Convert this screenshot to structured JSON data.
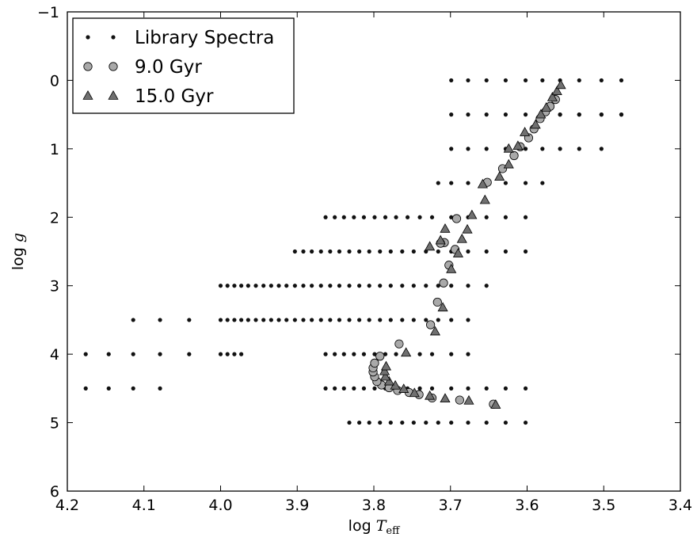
{
  "chart_data": {
    "type": "scatter",
    "xlabel": "log T_eff",
    "ylabel": "log g",
    "xlim": [
      4.2,
      3.4
    ],
    "ylim": [
      6,
      -1
    ],
    "x_ticks": [
      "4.2",
      "4.1",
      "4.0",
      "3.9",
      "3.8",
      "3.7",
      "3.6",
      "3.5",
      "3.4"
    ],
    "y_ticks": [
      "−1",
      "0",
      "1",
      "2",
      "3",
      "4",
      "5",
      "6"
    ],
    "grid": false,
    "legend": {
      "position": "top-left"
    },
    "series": [
      {
        "name": "Library Spectra",
        "marker": "dot",
        "color": "#111111",
        "rows": [
          {
            "y": 0.5,
            "x": [
              3.557,
              3.532,
              3.503,
              3.477
            ]
          },
          {
            "y": 0.0,
            "x": [
              3.699,
              3.677,
              3.653,
              3.628,
              3.602,
              3.58,
              3.557,
              3.532,
              3.503,
              3.477
            ]
          },
          {
            "y": 0.5,
            "x": [
              3.699,
              3.677,
              3.653,
              3.628,
              3.602,
              3.58,
              3.557,
              3.532,
              3.503,
              3.477
            ]
          },
          {
            "y": 1.0,
            "x": [
              3.699,
              3.677,
              3.653,
              3.628,
              3.602,
              3.58,
              3.557,
              3.532,
              3.503
            ]
          },
          {
            "y": 1.5,
            "x": [
              3.716,
              3.699,
              3.677,
              3.653,
              3.628,
              3.602,
              3.58
            ]
          },
          {
            "y": 2.0,
            "x": [
              3.863,
              3.851,
              3.839,
              3.826,
              3.813,
              3.799,
              3.785,
              3.771,
              3.756,
              3.74,
              3.724,
              3.699,
              3.677,
              3.653,
              3.628,
              3.602
            ]
          },
          {
            "y": 2.5,
            "x": [
              3.903,
              3.892,
              3.881,
              3.869,
              3.857,
              3.845,
              3.832,
              3.819,
              3.806,
              3.792,
              3.778,
              3.763,
              3.748,
              3.732,
              3.716,
              3.699,
              3.677,
              3.653,
              3.628,
              3.602
            ]
          },
          {
            "y": 3.0,
            "x": [
              4.0,
              3.991,
              3.982,
              3.973,
              3.964,
              3.954,
              3.944,
              3.934,
              3.924,
              3.914,
              3.903,
              3.892,
              3.881,
              3.869,
              3.857,
              3.845,
              3.832,
              3.819,
              3.806,
              3.792,
              3.778,
              3.763,
              3.748,
              3.732,
              3.716,
              3.699,
              3.677,
              3.653
            ]
          },
          {
            "y": 3.5,
            "x": [
              4.114,
              4.079,
              4.041,
              4.0,
              3.991,
              3.982,
              3.973,
              3.964,
              3.954,
              3.944,
              3.934,
              3.924,
              3.914,
              3.903,
              3.892,
              3.881,
              3.869,
              3.857,
              3.845,
              3.832,
              3.819,
              3.806,
              3.792,
              3.778,
              3.763,
              3.748,
              3.732,
              3.716,
              3.699,
              3.677
            ]
          },
          {
            "y": 4.0,
            "x": [
              4.176,
              4.146,
              4.114,
              4.079,
              4.041,
              4.0,
              3.991,
              3.982,
              3.973,
              3.863,
              3.851,
              3.839,
              3.826,
              3.813,
              3.799,
              3.785,
              3.771,
              3.756,
              3.74,
              3.724,
              3.699,
              3.677
            ]
          },
          {
            "y": 4.5,
            "x": [
              4.176,
              4.146,
              4.114,
              4.079,
              3.863,
              3.851,
              3.839,
              3.826,
              3.813,
              3.799,
              3.785,
              3.771,
              3.756,
              3.74,
              3.724,
              3.699,
              3.677,
              3.653,
              3.628,
              3.602
            ]
          },
          {
            "y": 5.0,
            "x": [
              3.832,
              3.819,
              3.806,
              3.792,
              3.778,
              3.763,
              3.748,
              3.732,
              3.716,
              3.699,
              3.677,
              3.653,
              3.628,
              3.602
            ]
          }
        ]
      },
      {
        "name": "9.0 Gyr",
        "marker": "circle",
        "color": "#a9a9a9",
        "points": [
          [
            3.644,
            4.73
          ],
          [
            3.688,
            4.67
          ],
          [
            3.724,
            4.64
          ],
          [
            3.741,
            4.59
          ],
          [
            3.754,
            4.56
          ],
          [
            3.769,
            4.53
          ],
          [
            3.78,
            4.49
          ],
          [
            3.79,
            4.45
          ],
          [
            3.796,
            4.4
          ],
          [
            3.799,
            4.33
          ],
          [
            3.801,
            4.26
          ],
          [
            3.801,
            4.2
          ],
          [
            3.799,
            4.13
          ],
          [
            3.792,
            4.03
          ],
          [
            3.767,
            3.85
          ],
          [
            3.726,
            3.57
          ],
          [
            3.717,
            3.24
          ],
          [
            3.709,
            2.96
          ],
          [
            3.702,
            2.7
          ],
          [
            3.694,
            2.47
          ],
          [
            3.708,
            2.37
          ],
          [
            3.713,
            2.38
          ],
          [
            3.692,
            2.02
          ],
          [
            3.652,
            1.49
          ],
          [
            3.632,
            1.29
          ],
          [
            3.617,
            1.1
          ],
          [
            3.609,
            0.97
          ],
          [
            3.598,
            0.84
          ],
          [
            3.591,
            0.71
          ],
          [
            3.583,
            0.56
          ],
          [
            3.576,
            0.46
          ],
          [
            3.57,
            0.38
          ],
          [
            3.563,
            0.28
          ]
        ]
      },
      {
        "name": "15.0 Gyr",
        "marker": "triangle",
        "color": "#707070",
        "points": [
          [
            3.641,
            4.74
          ],
          [
            3.676,
            4.68
          ],
          [
            3.707,
            4.65
          ],
          [
            3.727,
            4.61
          ],
          [
            3.747,
            4.57
          ],
          [
            3.761,
            4.51
          ],
          [
            3.772,
            4.46
          ],
          [
            3.78,
            4.4
          ],
          [
            3.785,
            4.33
          ],
          [
            3.786,
            4.25
          ],
          [
            3.784,
            4.18
          ],
          [
            3.758,
            3.98
          ],
          [
            3.72,
            3.67
          ],
          [
            3.71,
            3.32
          ],
          [
            3.699,
            2.76
          ],
          [
            3.69,
            2.53
          ],
          [
            3.685,
            2.32
          ],
          [
            3.678,
            2.18
          ],
          [
            3.707,
            2.17
          ],
          [
            3.713,
            2.34
          ],
          [
            3.727,
            2.43
          ],
          [
            3.672,
            1.97
          ],
          [
            3.655,
            1.75
          ],
          [
            3.658,
            1.52
          ],
          [
            3.636,
            1.41
          ],
          [
            3.624,
            1.23
          ],
          [
            3.624,
            1.0
          ],
          [
            3.612,
            0.96
          ],
          [
            3.603,
            0.76
          ],
          [
            3.589,
            0.65
          ],
          [
            3.582,
            0.5
          ],
          [
            3.575,
            0.4
          ],
          [
            3.567,
            0.25
          ],
          [
            3.561,
            0.16
          ],
          [
            3.556,
            0.07
          ]
        ]
      }
    ]
  }
}
